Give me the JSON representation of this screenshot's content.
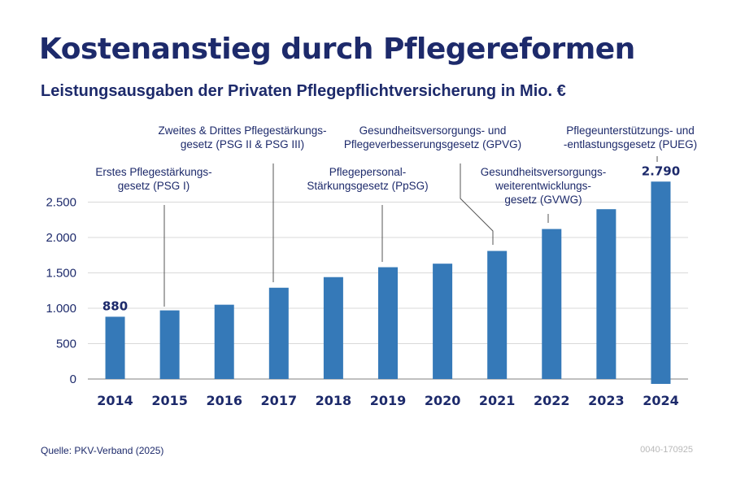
{
  "title": "Kostenanstieg durch Pflegereformen",
  "subtitle": "Leistungsausgaben der Privaten Pflegepflichtversicherung in Mio. €",
  "source": "Quelle: PKV-Verband (2025)",
  "code": "0040-170925",
  "colors": {
    "bar": "#3579b8",
    "text": "#1d2a6b",
    "grid": "#d9d9d9",
    "annotation_line": "#555555"
  },
  "chart_data": {
    "type": "bar",
    "categories": [
      "2014",
      "2015",
      "2016",
      "2017",
      "2018",
      "2019",
      "2020",
      "2021",
      "2022",
      "2023",
      "2024"
    ],
    "values": [
      880,
      970,
      1050,
      1290,
      1440,
      1580,
      1630,
      1810,
      2120,
      2400,
      2790
    ],
    "value_labels": [
      {
        "year": "2014",
        "text": "880"
      },
      {
        "year": "2024",
        "text": "2.790"
      }
    ],
    "yticks": [
      {
        "value": 0,
        "label": "0"
      },
      {
        "value": 500,
        "label": "500"
      },
      {
        "value": 1000,
        "label": "1.000"
      },
      {
        "value": 1500,
        "label": "1.500"
      },
      {
        "value": 2000,
        "label": "2.000"
      },
      {
        "value": 2500,
        "label": "2.500"
      }
    ],
    "ylim": [
      0,
      2800
    ],
    "grid": true,
    "annotations": [
      {
        "year": "2015",
        "lines": [
          "Erstes Pflegestärkungs-",
          "gesetz (PSG I)"
        ]
      },
      {
        "year": "2017",
        "lines": [
          "Zweites & Drittes Pflegestärkungs-",
          "gesetz (PSG II & PSG III)"
        ]
      },
      {
        "year": "2019",
        "lines": [
          "Pflegepersonal-",
          "Stärkungsgesetz (PpSG)"
        ]
      },
      {
        "year": "2021",
        "lines": [
          "Gesundheitsversorgungs- und",
          "Pflegeverbesserungsgesetz (GPVG)"
        ]
      },
      {
        "year": "2022",
        "lines": [
          "Gesundheitsversorgungs-",
          "weiterentwicklungs-",
          "gesetz (GVWG)"
        ]
      },
      {
        "year": "2024",
        "lines": [
          "Pflegeunterstützungs- und",
          "-entlastungsgesetz (PUEG)"
        ]
      }
    ]
  }
}
